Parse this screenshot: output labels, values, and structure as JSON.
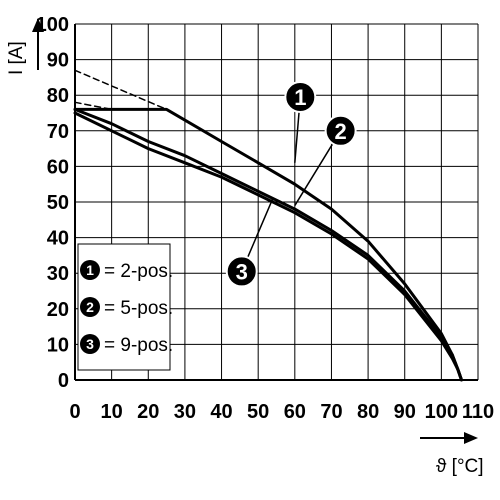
{
  "chart_data": {
    "type": "line",
    "title": "",
    "ylabel": "I [A]",
    "xlabel": "ϑ [°C]",
    "xlim": [
      0,
      110
    ],
    "ylim": [
      0,
      100
    ],
    "x_ticks": [
      "0",
      "10",
      "20",
      "30",
      "40",
      "50",
      "60",
      "70",
      "80",
      "90",
      "100",
      "110"
    ],
    "y_ticks": [
      "0",
      "10",
      "20",
      "30",
      "40",
      "50",
      "60",
      "70",
      "80",
      "90",
      "100"
    ],
    "grid": true,
    "legend_position": "bottom-left",
    "series": [
      {
        "marker": "1",
        "name": "2-pos.",
        "style": "solid",
        "points": [
          [
            0,
            76
          ],
          [
            25,
            76
          ],
          [
            40,
            67
          ],
          [
            50,
            61
          ],
          [
            60,
            55
          ],
          [
            70,
            48
          ],
          [
            80,
            39
          ],
          [
            90,
            27
          ],
          [
            100,
            13
          ],
          [
            103,
            7
          ],
          [
            104.5,
            3
          ],
          [
            105.5,
            0
          ]
        ]
      },
      {
        "marker": "2",
        "name": "5-pos.",
        "style": "solid",
        "points": [
          [
            0,
            76
          ],
          [
            10,
            72
          ],
          [
            20,
            67
          ],
          [
            30,
            63
          ],
          [
            40,
            58
          ],
          [
            50,
            53
          ],
          [
            60,
            48
          ],
          [
            70,
            42
          ],
          [
            80,
            35
          ],
          [
            90,
            25
          ],
          [
            100,
            12
          ],
          [
            103,
            7
          ],
          [
            104.5,
            3
          ],
          [
            105.5,
            0
          ]
        ]
      },
      {
        "marker": "3",
        "name": "9-pos.",
        "style": "solid",
        "points": [
          [
            0,
            75
          ],
          [
            10,
            70
          ],
          [
            20,
            65
          ],
          [
            30,
            61
          ],
          [
            40,
            57
          ],
          [
            50,
            52
          ],
          [
            60,
            47
          ],
          [
            70,
            41
          ],
          [
            80,
            34
          ],
          [
            90,
            24
          ],
          [
            100,
            11
          ],
          [
            103,
            6
          ],
          [
            104.5,
            3
          ],
          [
            105.5,
            0
          ]
        ]
      },
      {
        "name": "",
        "style": "dashed",
        "points": [
          [
            0,
            87
          ],
          [
            25,
            76
          ]
        ]
      },
      {
        "name": "",
        "style": "dashed",
        "points": [
          [
            0,
            78
          ],
          [
            10,
            76
          ]
        ]
      }
    ],
    "markers": [
      {
        "label": "1",
        "at": [
          60,
          61
        ],
        "badge": [
          61.5,
          79.5
        ]
      },
      {
        "label": "2",
        "at": [
          60,
          49
        ],
        "badge": [
          72.5,
          70
        ]
      },
      {
        "label": "3",
        "at": [
          54,
          51
        ],
        "badge": [
          45.5,
          30.5
        ]
      }
    ],
    "legend": [
      {
        "number": "1",
        "label": "= 2-pos."
      },
      {
        "number": "2",
        "label": "= 5-pos."
      },
      {
        "number": "3",
        "label": "= 9-pos."
      }
    ]
  }
}
